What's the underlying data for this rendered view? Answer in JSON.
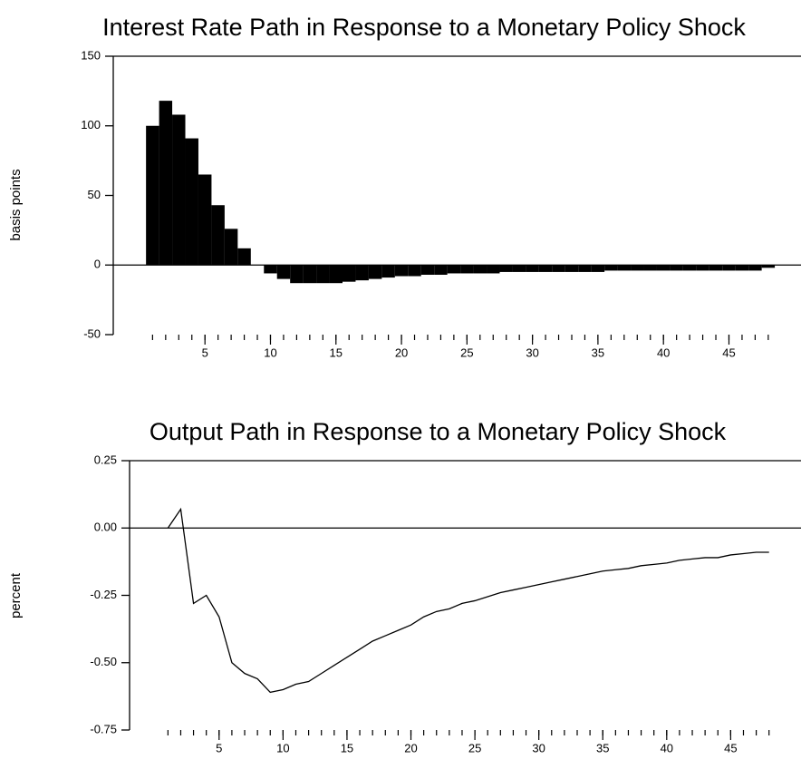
{
  "chart_data": [
    {
      "type": "bar",
      "title": "Interest Rate Path in Response to a Monetary Policy Shock",
      "y_label": "basis points",
      "color": "#000000",
      "x": [
        1,
        2,
        3,
        4,
        5,
        6,
        7,
        8,
        9,
        10,
        11,
        12,
        13,
        14,
        15,
        16,
        17,
        18,
        19,
        20,
        21,
        22,
        23,
        24,
        25,
        26,
        27,
        28,
        29,
        30,
        31,
        32,
        33,
        34,
        35,
        36,
        37,
        38,
        39,
        40,
        41,
        42,
        43,
        44,
        45,
        46,
        47,
        48
      ],
      "values": [
        100,
        118,
        108,
        91,
        65,
        43,
        26,
        12,
        0,
        -6,
        -10,
        -13,
        -13,
        -13,
        -13,
        -12,
        -11,
        -10,
        -9,
        -8,
        -8,
        -7,
        -7,
        -6,
        -6,
        -6,
        -6,
        -5,
        -5,
        -5,
        -5,
        -5,
        -5,
        -5,
        -5,
        -4,
        -4,
        -4,
        -4,
        -4,
        -4,
        -4,
        -4,
        -4,
        -4,
        -4,
        -4,
        -2
      ],
      "xlim": [
        -2,
        50.5
      ],
      "ylim": [
        -50,
        150
      ],
      "yticks": [
        -50,
        0,
        50,
        100,
        150
      ],
      "xticks": [
        5,
        10,
        15,
        20,
        25,
        30,
        35,
        40,
        45
      ],
      "minor_xticks": [
        1,
        2,
        3,
        4,
        5,
        6,
        7,
        8,
        9,
        10,
        11,
        12,
        13,
        14,
        15,
        16,
        17,
        18,
        19,
        20,
        21,
        22,
        23,
        24,
        25,
        26,
        27,
        28,
        29,
        30,
        31,
        32,
        33,
        34,
        35,
        36,
        37,
        38,
        39,
        40,
        41,
        42,
        43,
        44,
        45,
        46,
        47,
        48
      ]
    },
    {
      "type": "line",
      "title": "Output Path in Response to a Monetary Policy Shock",
      "y_label": "percent",
      "color": "#000000",
      "x": [
        1,
        2,
        3,
        4,
        5,
        6,
        7,
        8,
        9,
        10,
        11,
        12,
        13,
        14,
        15,
        16,
        17,
        18,
        19,
        20,
        21,
        22,
        23,
        24,
        25,
        26,
        27,
        28,
        29,
        30,
        31,
        32,
        33,
        34,
        35,
        36,
        37,
        38,
        39,
        40,
        41,
        42,
        43,
        44,
        45,
        46,
        47,
        48
      ],
      "values": [
        0.0,
        0.07,
        -0.28,
        -0.25,
        -0.33,
        -0.5,
        -0.54,
        -0.56,
        -0.61,
        -0.6,
        -0.58,
        -0.57,
        -0.54,
        -0.51,
        -0.48,
        -0.45,
        -0.42,
        -0.4,
        -0.38,
        -0.36,
        -0.33,
        -0.31,
        -0.3,
        -0.28,
        -0.27,
        -0.255,
        -0.24,
        -0.23,
        -0.22,
        -0.21,
        -0.2,
        -0.19,
        -0.18,
        -0.17,
        -0.16,
        -0.155,
        -0.15,
        -0.14,
        -0.135,
        -0.13,
        -0.12,
        -0.115,
        -0.11,
        -0.11,
        -0.1,
        -0.095,
        -0.09,
        -0.09
      ],
      "xlim": [
        -2,
        50.5
      ],
      "ylim": [
        -0.75,
        0.25
      ],
      "yticks": [
        -0.75,
        {
          "value": -0.5,
          "label": "-0.50"
        },
        -0.25,
        {
          "value": 0,
          "label": "0.00"
        },
        0.25
      ],
      "xticks": [
        5,
        10,
        15,
        20,
        25,
        30,
        35,
        40,
        45
      ],
      "minor_xticks": [
        1,
        2,
        3,
        4,
        5,
        6,
        7,
        8,
        9,
        10,
        11,
        12,
        13,
        14,
        15,
        16,
        17,
        18,
        19,
        20,
        21,
        22,
        23,
        24,
        25,
        26,
        27,
        28,
        29,
        30,
        31,
        32,
        33,
        34,
        35,
        36,
        37,
        38,
        39,
        40,
        41,
        42,
        43,
        44,
        45,
        46,
        47,
        48
      ]
    }
  ]
}
